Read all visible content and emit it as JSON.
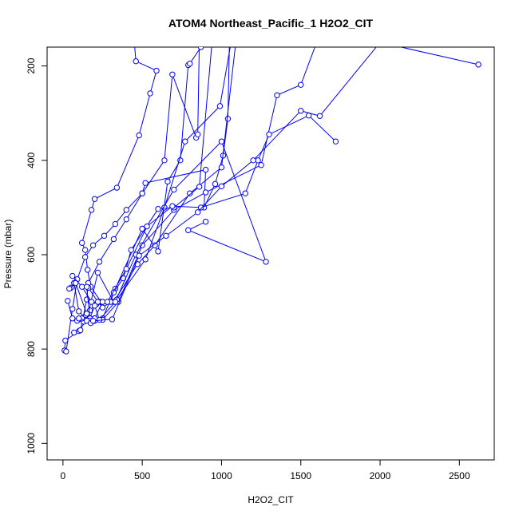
{
  "chart_data": {
    "type": "line",
    "title": "ATOM4 Northeast_Pacific_1 H2O2_CIT",
    "xlabel": "H2O2_CIT",
    "ylabel": "Pressure (mbar)",
    "xlim": [
      -100,
      2720
    ],
    "ylim": [
      1035,
      160
    ],
    "y_axis_inverted": true,
    "x_ticks": [
      0,
      500,
      1000,
      1500,
      2000,
      2500
    ],
    "y_ticks": [
      200,
      400,
      600,
      800,
      1000
    ],
    "grid": false,
    "line_color": "#0000ff",
    "marker": "open-circle",
    "series": [
      {
        "x": [
          10,
          15,
          100,
          150,
          170,
          210,
          240,
          175,
          155,
          140,
          120,
          180,
          200,
          340,
          480,
          550,
          590,
          460,
          450
        ],
        "y": [
          803,
          782,
          762,
          738,
          718,
          705,
          700,
          668,
          632,
          590,
          575,
          505,
          482,
          458,
          347,
          258,
          210,
          190,
          150
        ]
      },
      {
        "x": [
          20,
          60,
          90,
          140,
          190,
          260,
          330,
          400,
          500,
          520,
          900,
          890,
          960,
          1010,
          1040,
          1050
        ],
        "y": [
          805,
          715,
          652,
          605,
          580,
          560,
          535,
          505,
          470,
          448,
          420,
          500,
          450,
          390,
          312,
          150
        ]
      },
      {
        "x": [
          70,
          110,
          150,
          160,
          230,
          320,
          400,
          500,
          640,
          690,
          840,
          850,
          860
        ],
        "y": [
          765,
          760,
          695,
          660,
          615,
          567,
          525,
          470,
          400,
          218,
          352,
          345,
          150
        ]
      },
      {
        "x": [
          30,
          60,
          90,
          130,
          170,
          200,
          250,
          330,
          500,
          600,
          660,
          740,
          790,
          800,
          870,
          900
        ],
        "y": [
          698,
          735,
          740,
          742,
          740,
          740,
          735,
          672,
          545,
          593,
          445,
          400,
          198,
          195,
          160,
          150
        ]
      },
      {
        "x": [
          50,
          70,
          100,
          150,
          220,
          320,
          470,
          580,
          800,
          1000,
          1090
        ],
        "y": [
          670,
          660,
          720,
          738,
          638,
          700,
          620,
          580,
          470,
          415,
          150
        ]
      },
      {
        "x": [
          40,
          80,
          150,
          200,
          250,
          350,
          500,
          700,
          900,
          1250,
          1350,
          1500,
          1600
        ],
        "y": [
          672,
          660,
          725,
          735,
          738,
          700,
          580,
          505,
          468,
          410,
          262,
          240,
          150
        ]
      },
      {
        "x": [
          60,
          120,
          180,
          230,
          250,
          340,
          520,
          640,
          770,
          990,
          1060
        ],
        "y": [
          645,
          668,
          700,
          700,
          700,
          695,
          610,
          500,
          360,
          285,
          150
        ]
      },
      {
        "x": [
          160,
          220,
          250,
          300,
          320,
          380,
          430,
          600,
          700,
          860,
          940
        ],
        "y": [
          670,
          700,
          712,
          700,
          680,
          650,
          590,
          503,
          500,
          456,
          150
        ]
      },
      {
        "x": [
          150,
          170,
          200,
          230,
          330,
          460,
          700,
          1000,
          1280,
          790,
          900
        ],
        "y": [
          668,
          735,
          708,
          738,
          700,
          600,
          462,
          360,
          615,
          548,
          530
        ]
      },
      {
        "x": [
          120,
          200,
          250,
          280,
          400,
          530,
          690,
          870,
          1150,
          1230,
          1300,
          1550,
          1720
        ],
        "y": [
          735,
          735,
          700,
          700,
          630,
          540,
          497,
          500,
          470,
          400,
          345,
          305,
          360
        ]
      },
      {
        "x": [
          100,
          150,
          175,
          190,
          310,
          480,
          650,
          850,
          1000,
          1200,
          1500,
          1620,
          2000,
          2620
        ],
        "y": [
          735,
          740,
          745,
          740,
          737,
          602,
          560,
          510,
          455,
          400,
          295,
          306,
          150,
          197
        ]
      }
    ]
  }
}
